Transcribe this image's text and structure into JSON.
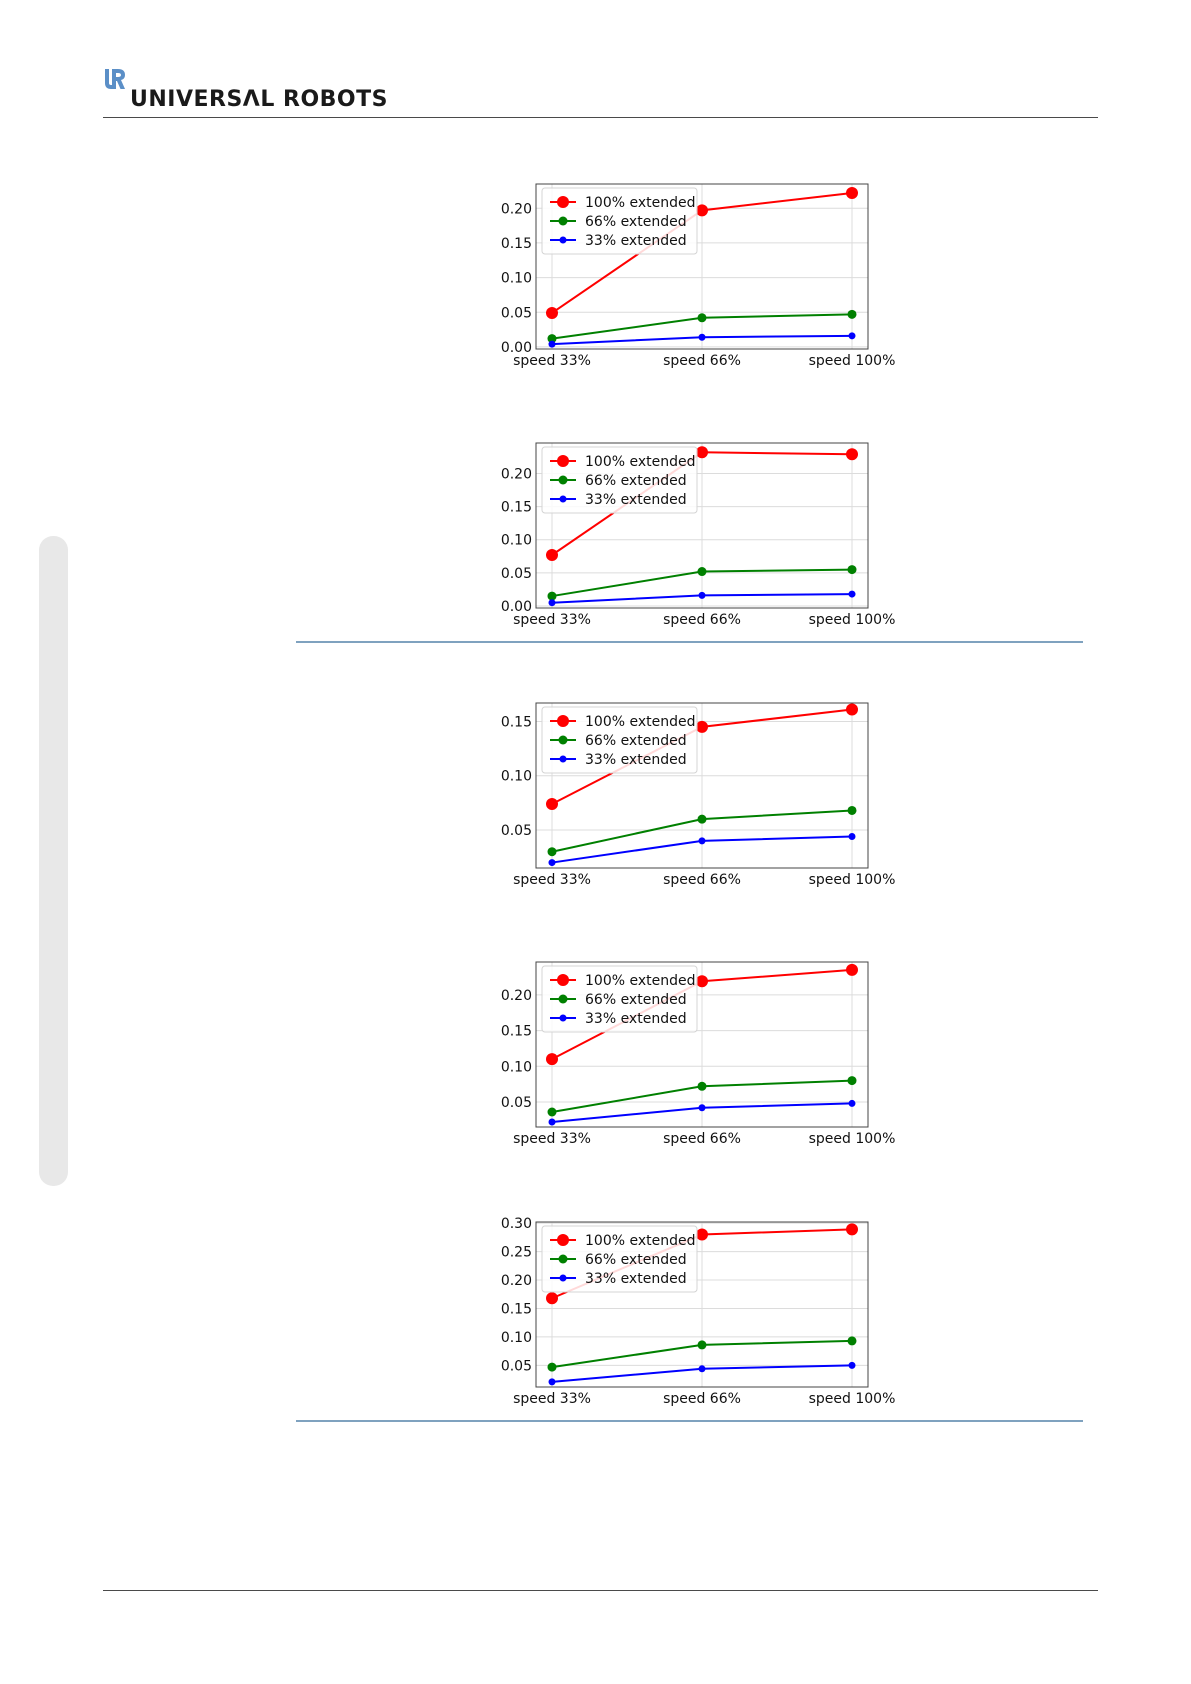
{
  "header": {
    "logo_text": "UNIVERSΛL ROBOTS",
    "logo_icon": "ur-logo-icon",
    "brand_color": "#5b8fc7"
  },
  "chart_data": [
    {
      "type": "line",
      "categories": [
        "speed 33%",
        "speed 66%",
        "speed 100%"
      ],
      "yticks": [
        "0.00",
        "0.05",
        "0.10",
        "0.15",
        "0.20"
      ],
      "ylim": [
        -0.003,
        0.235
      ],
      "grid": true,
      "legend": "top-left",
      "series": [
        {
          "name": "100% extended",
          "color": "#ff0000",
          "values": [
            0.049,
            0.197,
            0.222
          ]
        },
        {
          "name": "66% extended",
          "color": "#008000",
          "values": [
            0.012,
            0.042,
            0.047
          ]
        },
        {
          "name": "33% extended",
          "color": "#0000ff",
          "values": [
            0.004,
            0.014,
            0.016
          ]
        }
      ]
    },
    {
      "type": "line",
      "categories": [
        "speed 33%",
        "speed 66%",
        "speed 100%"
      ],
      "yticks": [
        "0.00",
        "0.05",
        "0.10",
        "0.15",
        "0.20"
      ],
      "ylim": [
        -0.003,
        0.246
      ],
      "grid": true,
      "legend": "top-left",
      "series": [
        {
          "name": "100% extended",
          "color": "#ff0000",
          "values": [
            0.077,
            0.232,
            0.229
          ]
        },
        {
          "name": "66% extended",
          "color": "#008000",
          "values": [
            0.015,
            0.052,
            0.055
          ]
        },
        {
          "name": "33% extended",
          "color": "#0000ff",
          "values": [
            0.005,
            0.016,
            0.018
          ]
        }
      ]
    },
    {
      "type": "line",
      "categories": [
        "speed 33%",
        "speed 66%",
        "speed 100%"
      ],
      "yticks": [
        "0.05",
        "0.10",
        "0.15"
      ],
      "ylim": [
        0.015,
        0.167
      ],
      "grid": true,
      "legend": "top-left",
      "series": [
        {
          "name": "100% extended",
          "color": "#ff0000",
          "values": [
            0.074,
            0.145,
            0.161
          ]
        },
        {
          "name": "66% extended",
          "color": "#008000",
          "values": [
            0.03,
            0.06,
            0.068
          ]
        },
        {
          "name": "33% extended",
          "color": "#0000ff",
          "values": [
            0.02,
            0.04,
            0.044
          ]
        }
      ]
    },
    {
      "type": "line",
      "categories": [
        "speed 33%",
        "speed 66%",
        "speed 100%"
      ],
      "yticks": [
        "0.05",
        "0.10",
        "0.15",
        "0.20"
      ],
      "ylim": [
        0.015,
        0.246
      ],
      "grid": true,
      "legend": "top-left",
      "series": [
        {
          "name": "100% extended",
          "color": "#ff0000",
          "values": [
            0.11,
            0.219,
            0.235
          ]
        },
        {
          "name": "66% extended",
          "color": "#008000",
          "values": [
            0.036,
            0.072,
            0.08
          ]
        },
        {
          "name": "33% extended",
          "color": "#0000ff",
          "values": [
            0.022,
            0.042,
            0.048
          ]
        }
      ]
    },
    {
      "type": "line",
      "categories": [
        "speed 33%",
        "speed 66%",
        "speed 100%"
      ],
      "yticks": [
        "0.05",
        "0.10",
        "0.15",
        "0.20",
        "0.25",
        "0.30"
      ],
      "ylim": [
        0.012,
        0.302
      ],
      "grid": true,
      "legend": "top-left",
      "series": [
        {
          "name": "100% extended",
          "color": "#ff0000",
          "values": [
            0.168,
            0.28,
            0.289
          ]
        },
        {
          "name": "66% extended",
          "color": "#008000",
          "values": [
            0.047,
            0.086,
            0.093
          ]
        },
        {
          "name": "33% extended",
          "color": "#0000ff",
          "values": [
            0.021,
            0.044,
            0.05
          ]
        }
      ]
    }
  ]
}
